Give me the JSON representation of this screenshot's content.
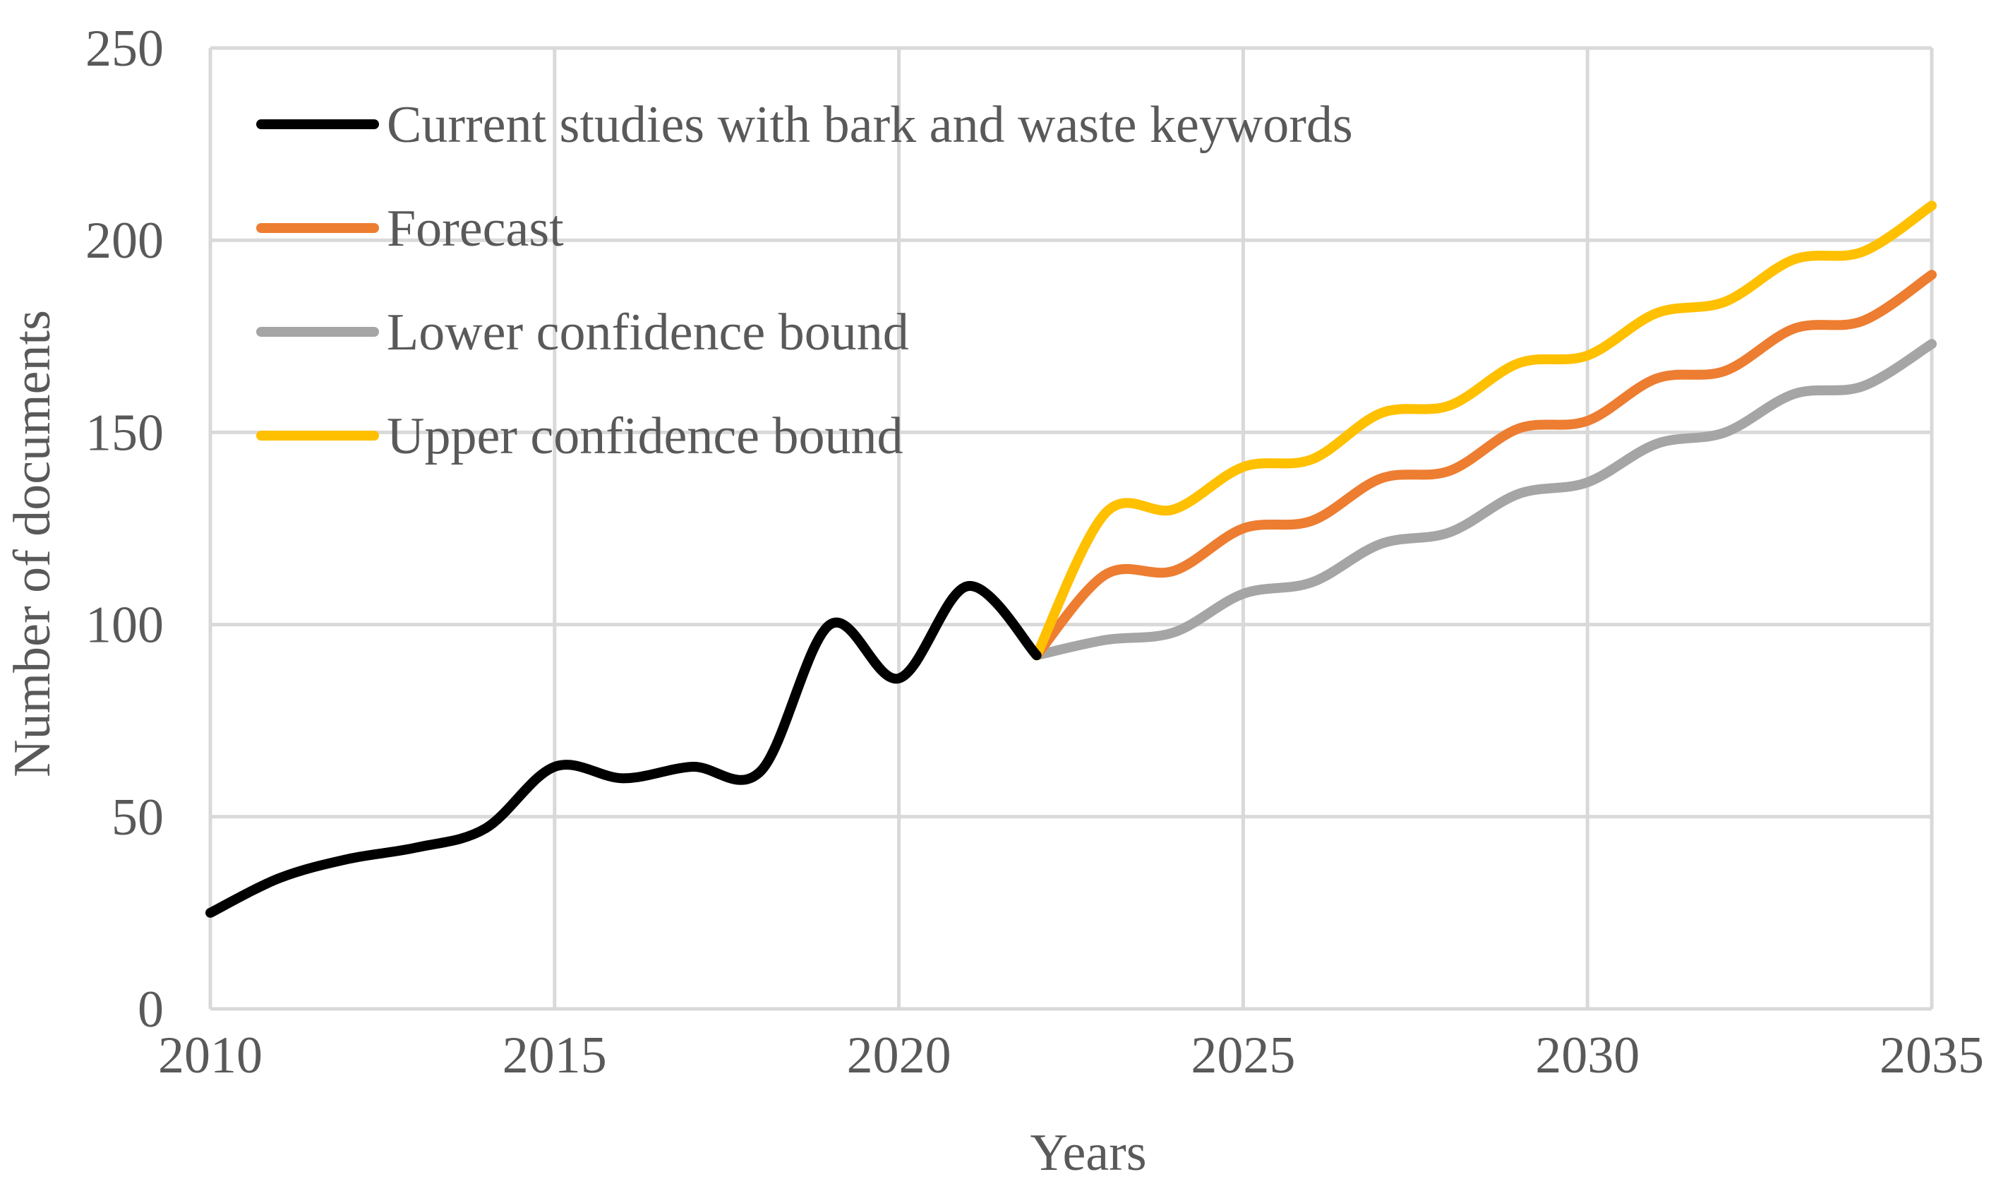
{
  "chart_data": {
    "type": "line",
    "title": "",
    "xlabel": "Years",
    "ylabel": "Number of documents",
    "xlim": [
      2010,
      2035
    ],
    "ylim": [
      0,
      250
    ],
    "xticks": [
      "2010",
      "2015",
      "2020",
      "2025",
      "2030",
      "2035"
    ],
    "yticks": [
      "0",
      "50",
      "100",
      "150",
      "200",
      "250"
    ],
    "grid": true,
    "legend_position": "top-left",
    "series": [
      {
        "name": "Current studies with bark and waste keywords",
        "color": "#000000",
        "x": [
          2010,
          2011,
          2012,
          2013,
          2014,
          2015,
          2016,
          2017,
          2018,
          2019,
          2020,
          2021,
          2022
        ],
        "values": [
          25,
          34,
          39,
          42,
          47,
          63,
          60,
          63,
          62,
          100,
          86,
          110,
          92
        ]
      },
      {
        "name": "Forecast",
        "color": "#ED7D31",
        "x": [
          2022,
          2023,
          2024,
          2025,
          2026,
          2027,
          2028,
          2029,
          2030,
          2031,
          2032,
          2033,
          2034,
          2035
        ],
        "values": [
          92,
          113,
          114,
          125,
          127,
          138,
          140,
          151,
          153,
          164,
          166,
          177,
          179,
          191
        ]
      },
      {
        "name": "Lower confidence bound",
        "color": "#A5A5A5",
        "x": [
          2022,
          2023,
          2024,
          2025,
          2026,
          2027,
          2028,
          2029,
          2030,
          2031,
          2032,
          2033,
          2034,
          2035
        ],
        "values": [
          92,
          96,
          98,
          108,
          111,
          121,
          124,
          134,
          137,
          147,
          150,
          160,
          162,
          173
        ]
      },
      {
        "name": "Upper confidence bound",
        "color": "#FFC000",
        "x": [
          2022,
          2023,
          2024,
          2025,
          2026,
          2027,
          2028,
          2029,
          2030,
          2031,
          2032,
          2033,
          2034,
          2035
        ],
        "values": [
          92,
          129,
          130,
          141,
          143,
          155,
          157,
          168,
          170,
          181,
          184,
          195,
          197,
          209
        ]
      }
    ]
  }
}
